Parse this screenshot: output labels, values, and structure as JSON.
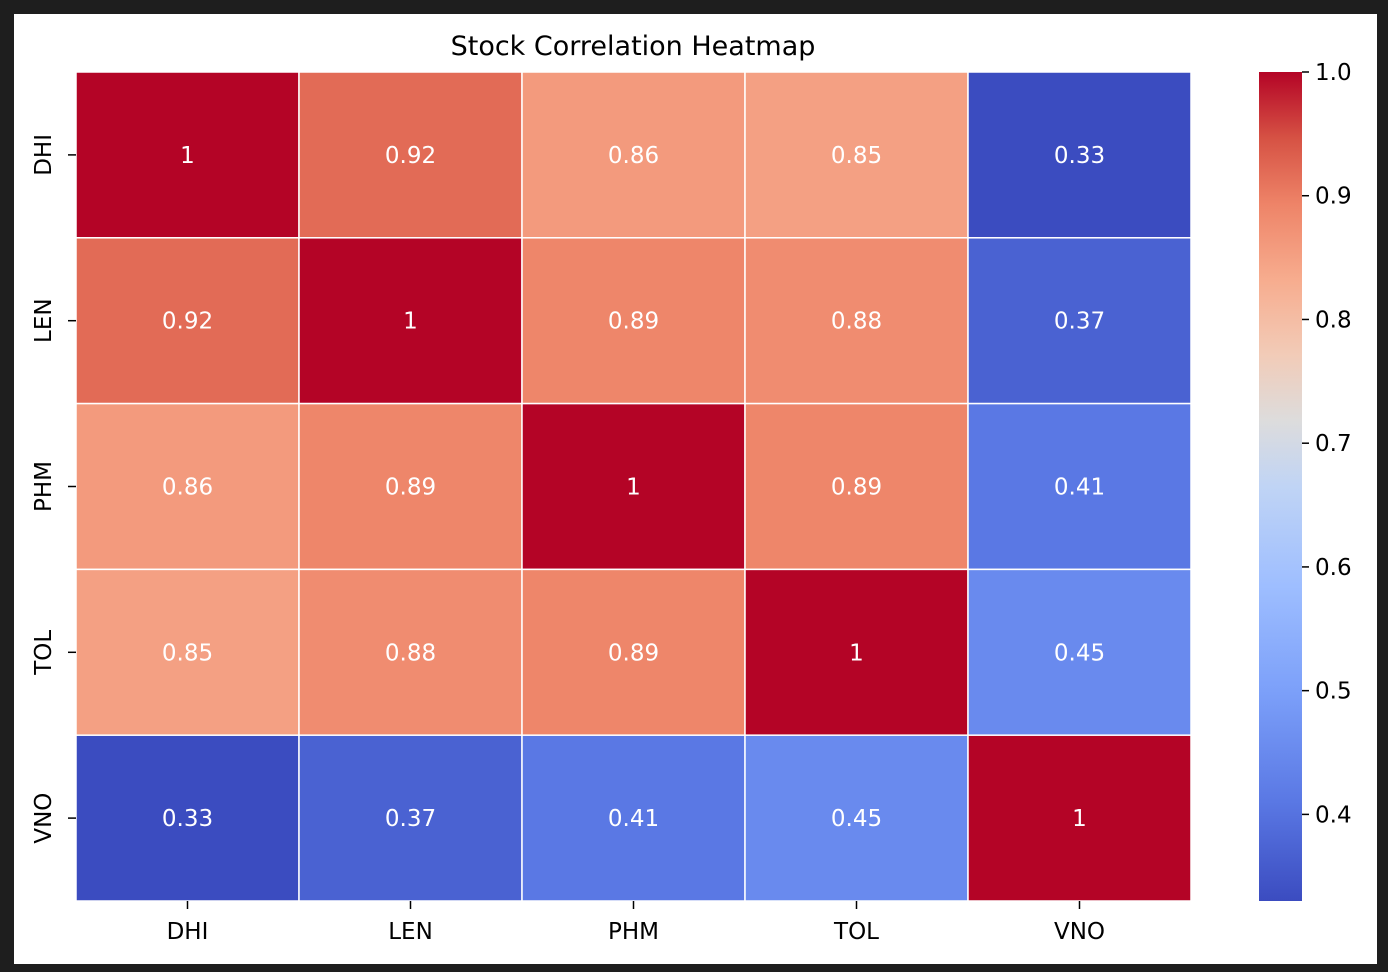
{
  "chart_data": {
    "type": "heatmap",
    "title": "Stock Correlation Heatmap",
    "xlabel": "",
    "ylabel": "",
    "x_categories": [
      "DHI",
      "LEN",
      "PHM",
      "TOL",
      "VNO"
    ],
    "y_categories": [
      "DHI",
      "LEN",
      "PHM",
      "TOL",
      "VNO"
    ],
    "values": [
      [
        1,
        0.92,
        0.86,
        0.85,
        0.33
      ],
      [
        0.92,
        1,
        0.89,
        0.88,
        0.37
      ],
      [
        0.86,
        0.89,
        1,
        0.89,
        0.41
      ],
      [
        0.85,
        0.88,
        0.89,
        1,
        0.45
      ],
      [
        0.33,
        0.37,
        0.41,
        0.45,
        1
      ]
    ],
    "annotations": [
      [
        "1",
        "0.92",
        "0.86",
        "0.85",
        "0.33"
      ],
      [
        "0.92",
        "1",
        "0.89",
        "0.88",
        "0.37"
      ],
      [
        "0.86",
        "0.89",
        "1",
        "0.89",
        "0.41"
      ],
      [
        "0.85",
        "0.88",
        "0.89",
        "1",
        "0.45"
      ],
      [
        "0.33",
        "0.37",
        "0.41",
        "0.45",
        "1"
      ]
    ],
    "colormap": "coolwarm",
    "color_range": [
      0.33,
      1.0
    ],
    "colorbar_ticks": [
      "1.0",
      "0.9",
      "0.8",
      "0.7",
      "0.6",
      "0.5",
      "0.4"
    ],
    "colorbar_tick_values": [
      1.0,
      0.9,
      0.8,
      0.7,
      0.6,
      0.5,
      0.4
    ],
    "grid": true
  },
  "colors": {
    "figure_background": "#ffffff",
    "frame_background": "#1e1e1e",
    "cell_border": "#ffffff",
    "annotation_text": "#ffffff",
    "axis_text": "#000000"
  }
}
